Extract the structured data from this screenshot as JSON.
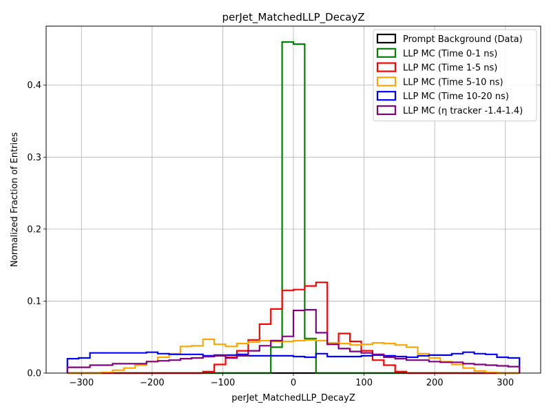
{
  "chart_data": {
    "type": "step-histogram",
    "title": "perJet_MatchedLLP_DecayZ",
    "xlabel": "perJet_MatchedLLP_DecayZ",
    "ylabel": "Normalized Fraction of Entries",
    "xlim": [
      -350,
      350
    ],
    "ylim": [
      0,
      0.482
    ],
    "xticks": [
      -300,
      -200,
      -100,
      0,
      100,
      200,
      300
    ],
    "yticks": [
      0.0,
      0.1,
      0.2,
      0.3,
      0.4
    ],
    "xtick_labels": [
      "−300",
      "−200",
      "−100",
      "0",
      "100",
      "200",
      "300"
    ],
    "ytick_labels": [
      "0.0",
      "0.1",
      "0.2",
      "0.3",
      "0.4"
    ],
    "grid": true,
    "legend_position": "top-right",
    "bin_edges": [
      -320,
      -304,
      -288,
      -272,
      -256,
      -240,
      -224,
      -208,
      -192,
      -176,
      -160,
      -144,
      -128,
      -112,
      -96,
      -80,
      -64,
      -48,
      -32,
      -16,
      0,
      16,
      32,
      48,
      64,
      80,
      96,
      112,
      128,
      144,
      160,
      176,
      192,
      208,
      224,
      240,
      256,
      272,
      288,
      304,
      320
    ],
    "series": [
      {
        "name": "Prompt Background (Data)",
        "color": "#000000",
        "values": [
          0,
          0,
          0,
          0,
          0,
          0,
          0,
          0,
          0,
          0,
          0,
          0,
          0,
          0,
          0,
          0,
          0,
          0,
          0,
          0,
          0,
          0,
          0,
          0,
          0,
          0,
          0,
          0,
          0,
          0,
          0,
          0,
          0,
          0,
          0,
          0,
          0,
          0,
          0,
          0
        ]
      },
      {
        "name": "LLP MC (Time 0-1 ns)",
        "color": "#008000",
        "values": [
          0,
          0,
          0,
          0,
          0,
          0,
          0,
          0,
          0,
          0,
          0,
          0,
          0,
          0,
          0,
          0,
          0,
          0,
          0.036,
          0.46,
          0.457,
          0.048,
          0,
          0,
          0,
          0,
          0,
          0,
          0,
          0,
          0,
          0,
          0,
          0,
          0,
          0,
          0,
          0,
          0,
          0
        ]
      },
      {
        "name": "LLP MC (Time 1-5 ns)",
        "color": "#ff0000",
        "values": [
          0,
          0,
          0,
          0,
          0,
          0,
          0,
          0,
          0,
          0,
          0,
          0,
          0.002,
          0.012,
          0.022,
          0.031,
          0.046,
          0.068,
          0.089,
          0.115,
          0.116,
          0.121,
          0.126,
          0.04,
          0.055,
          0.044,
          0.031,
          0.018,
          0.011,
          0.002,
          0,
          0,
          0,
          0,
          0,
          0,
          0,
          0,
          0,
          0
        ]
      },
      {
        "name": "LLP MC (Time 5-10 ns)",
        "color": "#ffa500",
        "values": [
          0,
          0,
          0,
          0.001,
          0.004,
          0.007,
          0.011,
          0.016,
          0.022,
          0.027,
          0.037,
          0.038,
          0.047,
          0.04,
          0.037,
          0.041,
          0.043,
          0.045,
          0.044,
          0.044,
          0.045,
          0.046,
          0.045,
          0.042,
          0.041,
          0.039,
          0.04,
          0.042,
          0.041,
          0.039,
          0.036,
          0.027,
          0.021,
          0.016,
          0.012,
          0.007,
          0.003,
          0.001,
          0,
          0
        ]
      },
      {
        "name": "LLP MC (Time 10-20 ns)",
        "color": "#0000ff",
        "values": [
          0.02,
          0.021,
          0.028,
          0.028,
          0.028,
          0.028,
          0.028,
          0.029,
          0.027,
          0.026,
          0.026,
          0.026,
          0.024,
          0.025,
          0.025,
          0.026,
          0.024,
          0.024,
          0.024,
          0.024,
          0.023,
          0.022,
          0.027,
          0.023,
          0.023,
          0.023,
          0.024,
          0.025,
          0.024,
          0.023,
          0.022,
          0.024,
          0.025,
          0.025,
          0.027,
          0.029,
          0.027,
          0.026,
          0.022,
          0.021
        ]
      },
      {
        "name": "LLP MC (η tracker -1.4-1.4)",
        "color": "#800080",
        "values": [
          0.008,
          0.008,
          0.011,
          0.011,
          0.013,
          0.013,
          0.013,
          0.016,
          0.017,
          0.018,
          0.02,
          0.021,
          0.023,
          0.024,
          0.021,
          0.024,
          0.031,
          0.038,
          0.045,
          0.051,
          0.087,
          0.088,
          0.056,
          0.04,
          0.034,
          0.03,
          0.028,
          0.026,
          0.022,
          0.02,
          0.018,
          0.018,
          0.016,
          0.015,
          0.015,
          0.013,
          0.012,
          0.011,
          0.01,
          0.009
        ]
      }
    ]
  }
}
